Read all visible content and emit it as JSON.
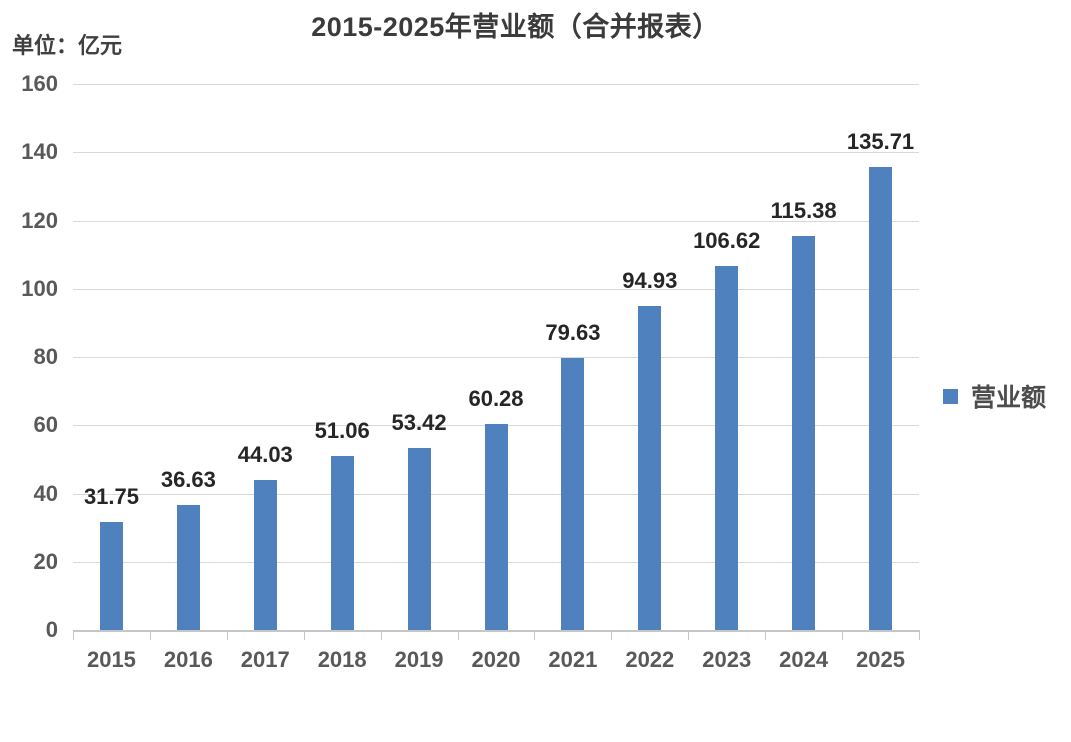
{
  "title": "2015-2025年营业额（合并报表）",
  "unit_label": "单位：亿元",
  "legend": {
    "label": "营业额",
    "swatch_color": "#4e81bd"
  },
  "colors": {
    "bar": "#4e81bd",
    "gridline": "#d9d9d9",
    "axis_line": "#c6c6c6",
    "title_text": "#3b3b3b",
    "axis_text": "#595959",
    "value_label_text": "#262626"
  },
  "chart_data": {
    "type": "bar",
    "title": "2015-2025年营业额（合并报表）",
    "xlabel": "",
    "ylabel": "单位：亿元",
    "categories": [
      "2015",
      "2016",
      "2017",
      "2018",
      "2019",
      "2020",
      "2021",
      "2022",
      "2023",
      "2024",
      "2025"
    ],
    "series": [
      {
        "name": "营业额",
        "values": [
          31.75,
          36.63,
          44.03,
          51.06,
          53.42,
          60.28,
          79.63,
          94.93,
          106.62,
          115.38,
          135.71
        ]
      }
    ],
    "value_labels": [
      "31.75",
      "36.63",
      "44.03",
      "51.06",
      "53.42",
      "60.28",
      "79.63",
      "94.93",
      "106.62",
      "115.38",
      "135.71"
    ],
    "ylim": [
      0,
      160
    ],
    "ytick_step": 20,
    "ytick_labels": [
      "0",
      "20",
      "40",
      "60",
      "80",
      "100",
      "120",
      "140",
      "160"
    ],
    "grid": true,
    "legend_position": "right"
  }
}
